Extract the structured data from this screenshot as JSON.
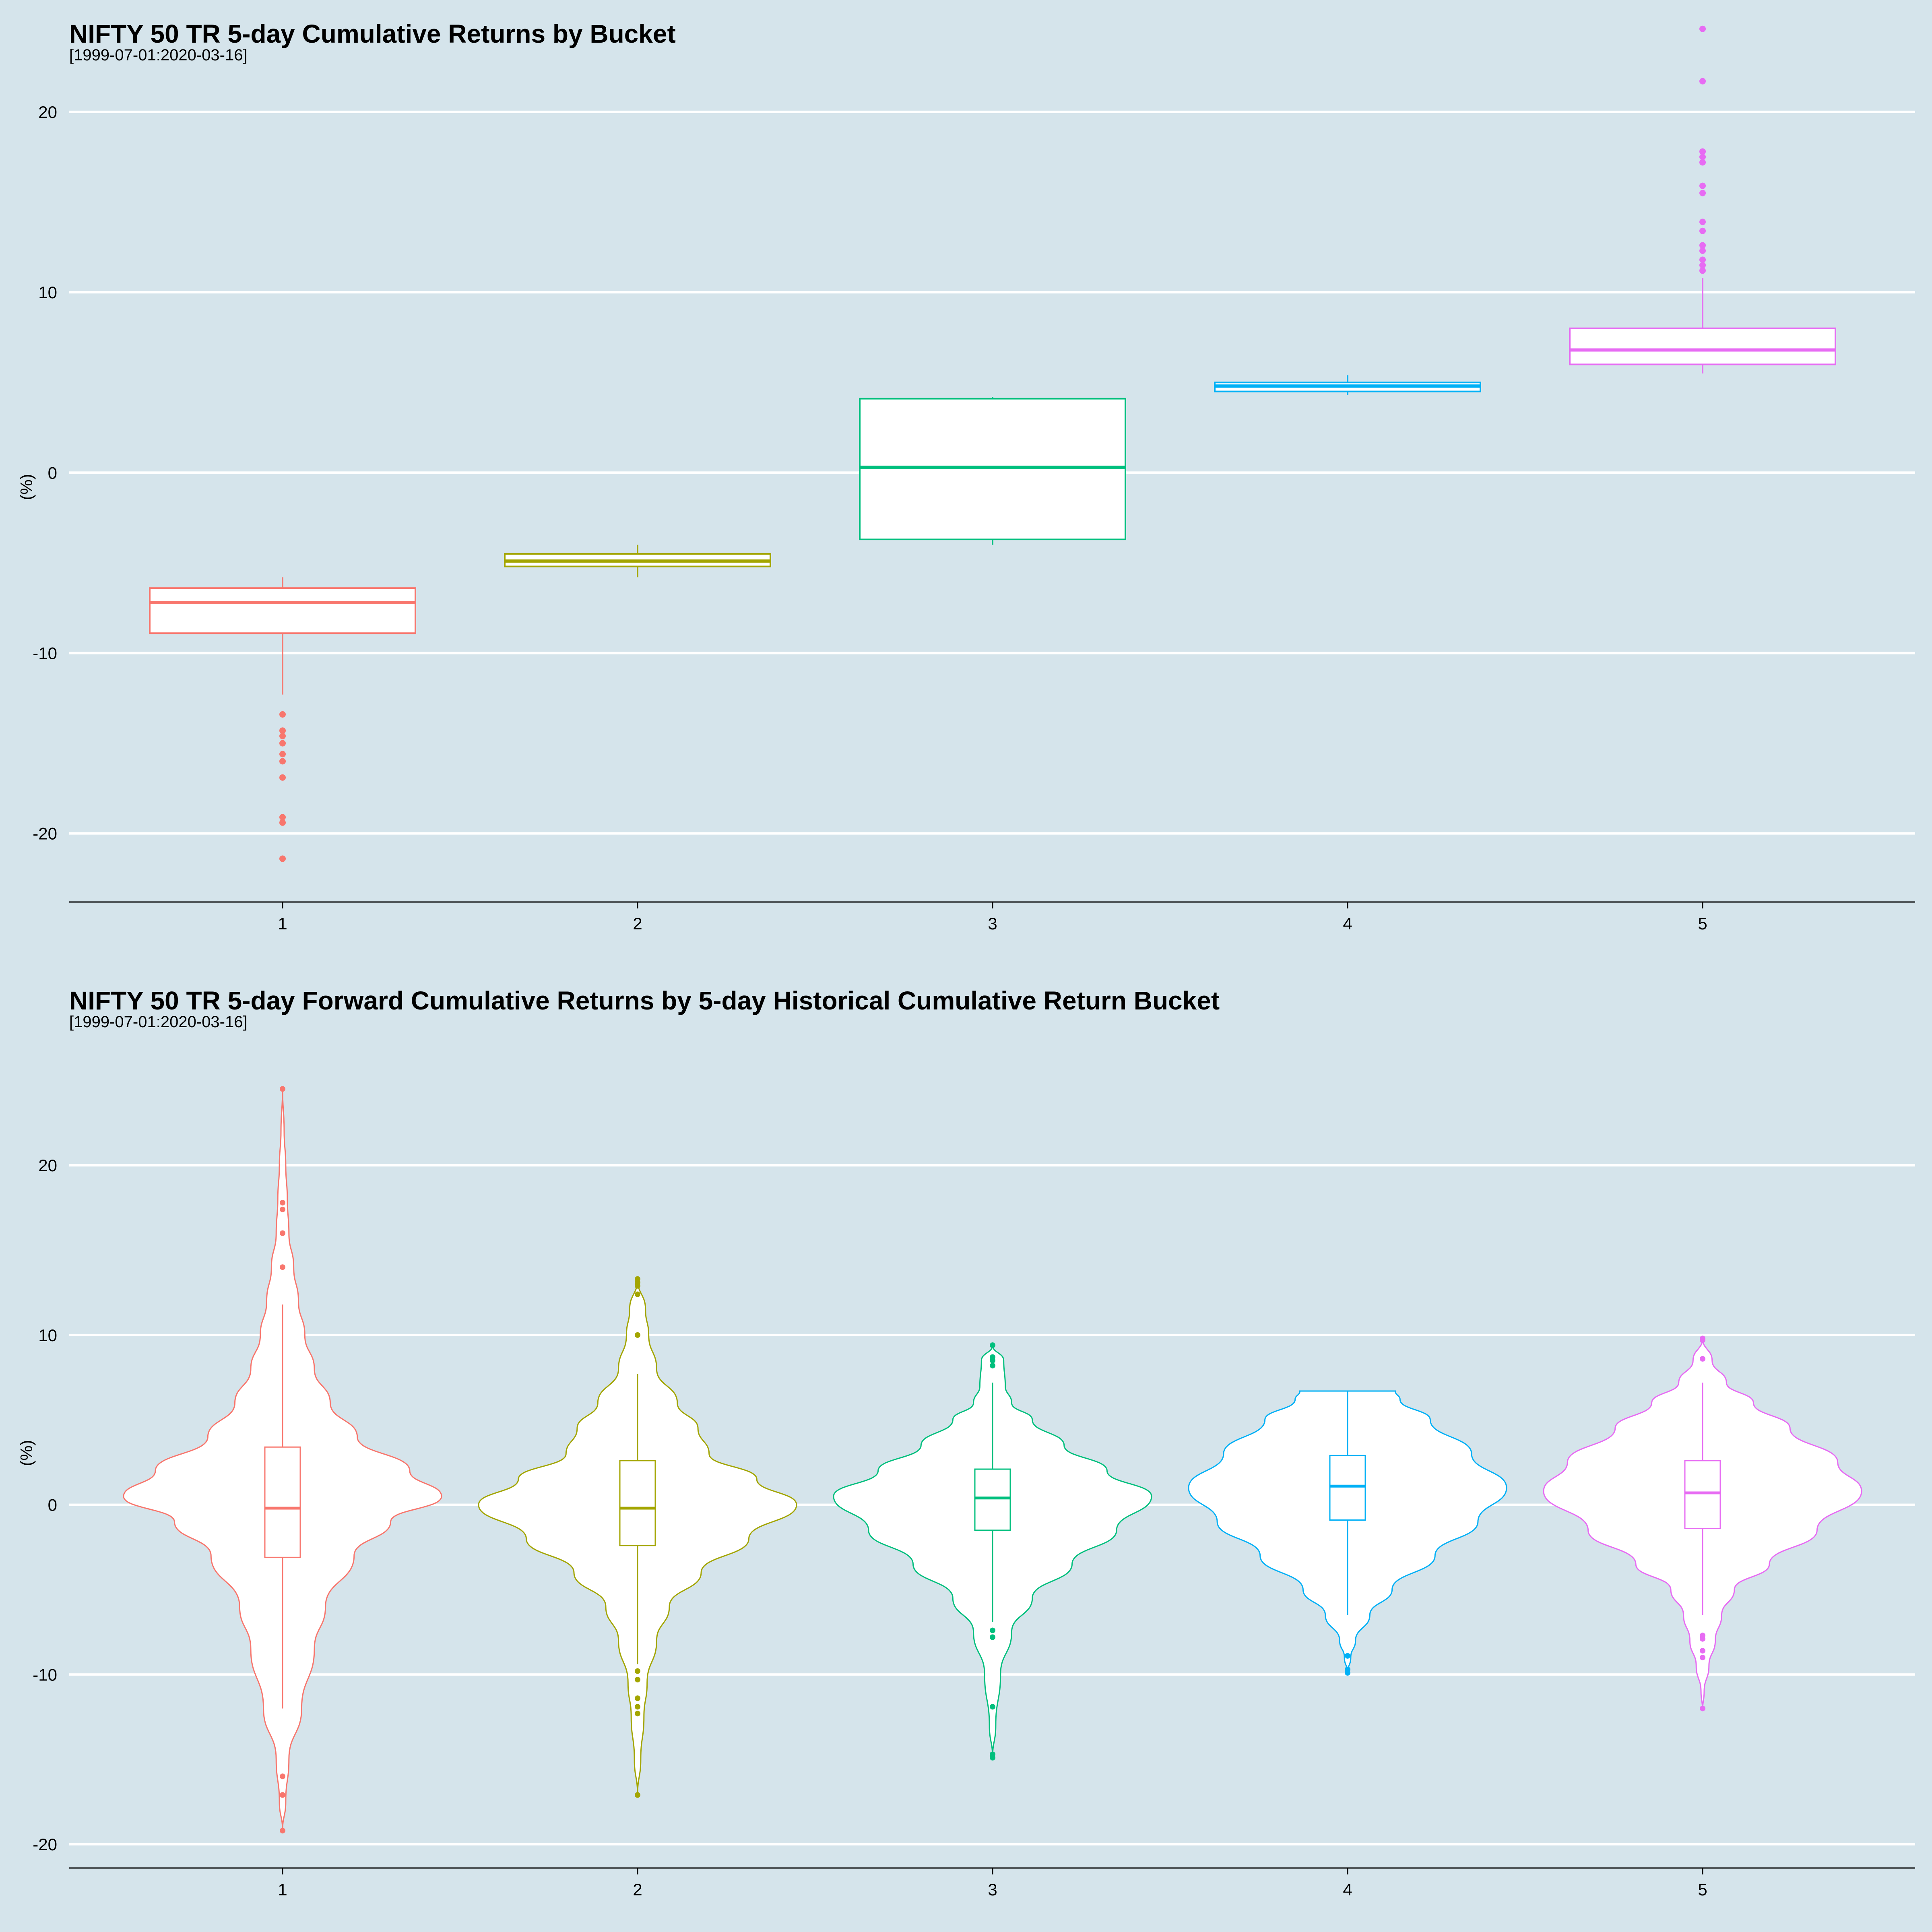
{
  "chart_data": [
    {
      "type": "box",
      "title": "NIFTY 50 TR 5-day Cumulative Returns by Bucket",
      "subtitle": "[1999-07-01:2020-03-16]",
      "xlabel": "",
      "ylabel": "(%)",
      "ylim": [
        -23.8,
        26.2
      ],
      "yticks": [
        -20,
        -10,
        0,
        10,
        20
      ],
      "grid": "horizontal",
      "legend": "none",
      "categories": [
        "1",
        "2",
        "3",
        "4",
        "5"
      ],
      "colors": [
        "#f8766d",
        "#a3a500",
        "#00bf7d",
        "#00b0f6",
        "#e76bf3"
      ],
      "boxes": [
        {
          "whisker_low": -12.3,
          "q1": -8.9,
          "median": -7.2,
          "q3": -6.4,
          "whisker_high": -5.8,
          "outliers": [
            -13.4,
            -14.3,
            -14.6,
            -15.0,
            -15.6,
            -16.0,
            -16.9,
            -19.1,
            -19.4,
            -21.4
          ]
        },
        {
          "whisker_low": -5.8,
          "q1": -5.2,
          "median": -4.9,
          "q3": -4.5,
          "whisker_high": -4.0,
          "outliers": []
        },
        {
          "whisker_low": -4.0,
          "q1": -3.7,
          "median": 0.3,
          "q3": 4.1,
          "whisker_high": 4.2,
          "outliers": []
        },
        {
          "whisker_low": 4.3,
          "q1": 4.5,
          "median": 4.8,
          "q3": 5.0,
          "whisker_high": 5.4,
          "outliers": []
        },
        {
          "whisker_low": 5.5,
          "q1": 6.0,
          "median": 6.8,
          "q3": 8.0,
          "whisker_high": 10.8,
          "outliers": [
            11.2,
            11.5,
            11.8,
            12.3,
            12.6,
            13.4,
            13.9,
            15.5,
            15.9,
            17.2,
            17.5,
            17.8,
            21.7,
            24.6
          ]
        }
      ]
    },
    {
      "type": "violin",
      "title": "NIFTY 50 TR 5-day Forward Cumulative Returns by 5-day Historical Cumulative Return Bucket",
      "subtitle": "[1999-07-01:2020-03-16]",
      "xlabel": "",
      "ylabel": "(%)",
      "ylim": [
        -21.4,
        27.0
      ],
      "yticks": [
        -20,
        -10,
        0,
        10,
        20
      ],
      "grid": "horizontal",
      "legend": "none",
      "categories": [
        "1",
        "2",
        "3",
        "4",
        "5"
      ],
      "colors": [
        "#f8766d",
        "#a3a500",
        "#00bf7d",
        "#00b0f6",
        "#e76bf3"
      ],
      "violins": [
        {
          "profile": [
            [
              -19.2,
              0.0
            ],
            [
              -17.5,
              0.02
            ],
            [
              -15.0,
              0.04
            ],
            [
              -12.0,
              0.12
            ],
            [
              -8.5,
              0.2
            ],
            [
              -6.0,
              0.27
            ],
            [
              -3.0,
              0.45
            ],
            [
              -1.0,
              0.68
            ],
            [
              0.5,
              1.0
            ],
            [
              2.0,
              0.8
            ],
            [
              4.0,
              0.47
            ],
            [
              6.0,
              0.3
            ],
            [
              8.0,
              0.2
            ],
            [
              10.0,
              0.14
            ],
            [
              12.0,
              0.1
            ],
            [
              14.0,
              0.07
            ],
            [
              16.0,
              0.04
            ],
            [
              18.0,
              0.03
            ],
            [
              20.0,
              0.02
            ],
            [
              22.0,
              0.01
            ],
            [
              24.5,
              0.0
            ]
          ],
          "box": {
            "whisker_low": -12.0,
            "q1": -3.1,
            "median": -0.2,
            "q3": 3.4,
            "whisker_high": 11.8
          },
          "outliers": [
            -19.2,
            -17.1,
            -16.0,
            14.0,
            16.0,
            17.4,
            17.8,
            24.5
          ]
        },
        {
          "profile": [
            [
              -17.1,
              0.0
            ],
            [
              -15.0,
              0.02
            ],
            [
              -12.5,
              0.04
            ],
            [
              -10.5,
              0.06
            ],
            [
              -8.0,
              0.12
            ],
            [
              -6.0,
              0.2
            ],
            [
              -4.0,
              0.4
            ],
            [
              -2.0,
              0.7
            ],
            [
              0.0,
              1.0
            ],
            [
              1.5,
              0.75
            ],
            [
              3.0,
              0.45
            ],
            [
              4.5,
              0.38
            ],
            [
              6.0,
              0.25
            ],
            [
              8.0,
              0.12
            ],
            [
              10.0,
              0.07
            ],
            [
              11.5,
              0.05
            ],
            [
              13.3,
              0.0
            ]
          ],
          "box": {
            "whisker_low": -9.4,
            "q1": -2.4,
            "median": -0.2,
            "q3": 2.6,
            "whisker_high": 7.7
          },
          "outliers": [
            -17.1,
            -12.3,
            -11.9,
            -11.4,
            -10.3,
            -9.8,
            10.0,
            12.4,
            12.9,
            13.1,
            13.3
          ]
        },
        {
          "profile": [
            [
              -14.9,
              0.0
            ],
            [
              -13.0,
              0.02
            ],
            [
              -10.0,
              0.05
            ],
            [
              -7.5,
              0.12
            ],
            [
              -5.5,
              0.25
            ],
            [
              -3.5,
              0.5
            ],
            [
              -1.5,
              0.78
            ],
            [
              0.5,
              1.0
            ],
            [
              2.0,
              0.72
            ],
            [
              3.5,
              0.45
            ],
            [
              5.0,
              0.25
            ],
            [
              6.0,
              0.12
            ],
            [
              7.0,
              0.08
            ],
            [
              8.5,
              0.07
            ],
            [
              9.4,
              0.0
            ]
          ],
          "box": {
            "whisker_low": -6.9,
            "q1": -1.5,
            "median": 0.4,
            "q3": 2.1,
            "whisker_high": 7.2
          },
          "outliers": [
            -14.9,
            -14.7,
            -11.9,
            -7.8,
            -7.4,
            8.2,
            8.5,
            8.7,
            9.4
          ]
        },
        {
          "profile": [
            [
              -9.9,
              0.0
            ],
            [
              -9.0,
              0.02
            ],
            [
              -8.0,
              0.05
            ],
            [
              -6.5,
              0.14
            ],
            [
              -5.0,
              0.28
            ],
            [
              -3.0,
              0.55
            ],
            [
              -1.0,
              0.82
            ],
            [
              1.0,
              1.0
            ],
            [
              3.0,
              0.78
            ],
            [
              5.0,
              0.52
            ],
            [
              6.2,
              0.33
            ],
            [
              6.7,
              0.3
            ]
          ],
          "box": {
            "whisker_low": -6.5,
            "q1": -0.9,
            "median": 1.1,
            "q3": 2.9,
            "whisker_high": 6.7
          },
          "outliers": [
            -9.9,
            -9.7,
            -8.9
          ]
        },
        {
          "profile": [
            [
              -12.1,
              0.0
            ],
            [
              -11.0,
              0.01
            ],
            [
              -9.5,
              0.04
            ],
            [
              -8.0,
              0.08
            ],
            [
              -6.5,
              0.12
            ],
            [
              -5.0,
              0.2
            ],
            [
              -3.5,
              0.42
            ],
            [
              -1.5,
              0.72
            ],
            [
              0.8,
              1.0
            ],
            [
              2.5,
              0.85
            ],
            [
              4.5,
              0.55
            ],
            [
              6.0,
              0.32
            ],
            [
              7.2,
              0.15
            ],
            [
              8.5,
              0.06
            ],
            [
              9.8,
              0.0
            ]
          ],
          "box": {
            "whisker_low": -6.5,
            "q1": -1.4,
            "median": 0.7,
            "q3": 2.6,
            "whisker_high": 7.2
          },
          "outliers": [
            -12.0,
            -9.0,
            -8.6,
            -7.9,
            -7.7,
            8.6,
            9.7,
            9.8
          ]
        }
      ]
    }
  ]
}
